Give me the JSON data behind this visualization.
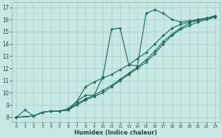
{
  "xlabel": "Humidex (Indice chaleur)",
  "xlim": [
    -0.5,
    23.5
  ],
  "ylim": [
    7.6,
    17.4
  ],
  "xticks": [
    0,
    1,
    2,
    3,
    4,
    5,
    6,
    7,
    8,
    9,
    10,
    11,
    12,
    13,
    14,
    15,
    16,
    17,
    18,
    19,
    20,
    21,
    22,
    23
  ],
  "yticks": [
    8,
    9,
    10,
    11,
    12,
    13,
    14,
    15,
    16,
    17
  ],
  "bg_color": "#c8e8e4",
  "grid_color": "#a0ccca",
  "line_color": "#1e6e64",
  "line_width": 0.9,
  "marker": "D",
  "marker_size": 2.0,
  "curves": [
    [
      [
        0,
        8.0
      ],
      [
        1,
        8.6
      ],
      [
        2,
        8.1
      ],
      [
        3,
        8.4
      ],
      [
        4,
        8.5
      ],
      [
        5,
        8.5
      ],
      [
        6,
        8.6
      ],
      [
        7,
        9.3
      ],
      [
        8,
        9.8
      ],
      [
        9,
        9.8
      ],
      [
        10,
        11.3
      ],
      [
        11,
        15.2
      ],
      [
        12,
        15.3
      ],
      [
        13,
        12.3
      ],
      [
        14,
        12.2
      ],
      [
        15,
        16.5
      ],
      [
        16,
        16.8
      ],
      [
        17,
        16.5
      ],
      [
        18,
        16.0
      ],
      [
        19,
        15.8
      ],
      [
        20,
        15.9
      ],
      [
        21,
        16.0
      ],
      [
        22,
        16.1
      ],
      [
        23,
        16.3
      ]
    ],
    [
      [
        0,
        8.0
      ],
      [
        2,
        8.1
      ],
      [
        3,
        8.4
      ],
      [
        4,
        8.5
      ],
      [
        5,
        8.5
      ],
      [
        6,
        8.7
      ],
      [
        7,
        9.3
      ],
      [
        8,
        10.5
      ],
      [
        9,
        10.9
      ],
      [
        10,
        11.2
      ],
      [
        11,
        11.5
      ],
      [
        12,
        11.9
      ],
      [
        13,
        12.3
      ],
      [
        14,
        12.8
      ],
      [
        15,
        13.3
      ],
      [
        16,
        14.0
      ],
      [
        17,
        14.7
      ],
      [
        18,
        15.3
      ],
      [
        19,
        15.6
      ],
      [
        20,
        15.8
      ],
      [
        21,
        15.9
      ],
      [
        22,
        16.1
      ],
      [
        23,
        16.3
      ]
    ],
    [
      [
        0,
        8.0
      ],
      [
        2,
        8.1
      ],
      [
        3,
        8.4
      ],
      [
        4,
        8.5
      ],
      [
        5,
        8.5
      ],
      [
        6,
        8.6
      ],
      [
        7,
        9.1
      ],
      [
        8,
        9.5
      ],
      [
        9,
        9.8
      ],
      [
        10,
        10.2
      ],
      [
        11,
        10.6
      ],
      [
        12,
        11.1
      ],
      [
        13,
        11.6
      ],
      [
        14,
        12.1
      ],
      [
        15,
        12.7
      ],
      [
        16,
        13.4
      ],
      [
        17,
        14.2
      ],
      [
        18,
        14.8
      ],
      [
        19,
        15.3
      ],
      [
        20,
        15.7
      ],
      [
        21,
        16.0
      ],
      [
        22,
        16.1
      ],
      [
        23,
        16.2
      ]
    ],
    [
      [
        0,
        8.0
      ],
      [
        2,
        8.1
      ],
      [
        3,
        8.4
      ],
      [
        4,
        8.5
      ],
      [
        5,
        8.5
      ],
      [
        6,
        8.6
      ],
      [
        7,
        9.0
      ],
      [
        8,
        9.4
      ],
      [
        9,
        9.7
      ],
      [
        10,
        10.0
      ],
      [
        11,
        10.5
      ],
      [
        12,
        11.0
      ],
      [
        13,
        11.5
      ],
      [
        14,
        12.0
      ],
      [
        15,
        12.5
      ],
      [
        16,
        13.2
      ],
      [
        17,
        14.0
      ],
      [
        18,
        14.7
      ],
      [
        19,
        15.2
      ],
      [
        20,
        15.5
      ],
      [
        21,
        15.8
      ],
      [
        22,
        16.0
      ],
      [
        23,
        16.2
      ]
    ]
  ]
}
